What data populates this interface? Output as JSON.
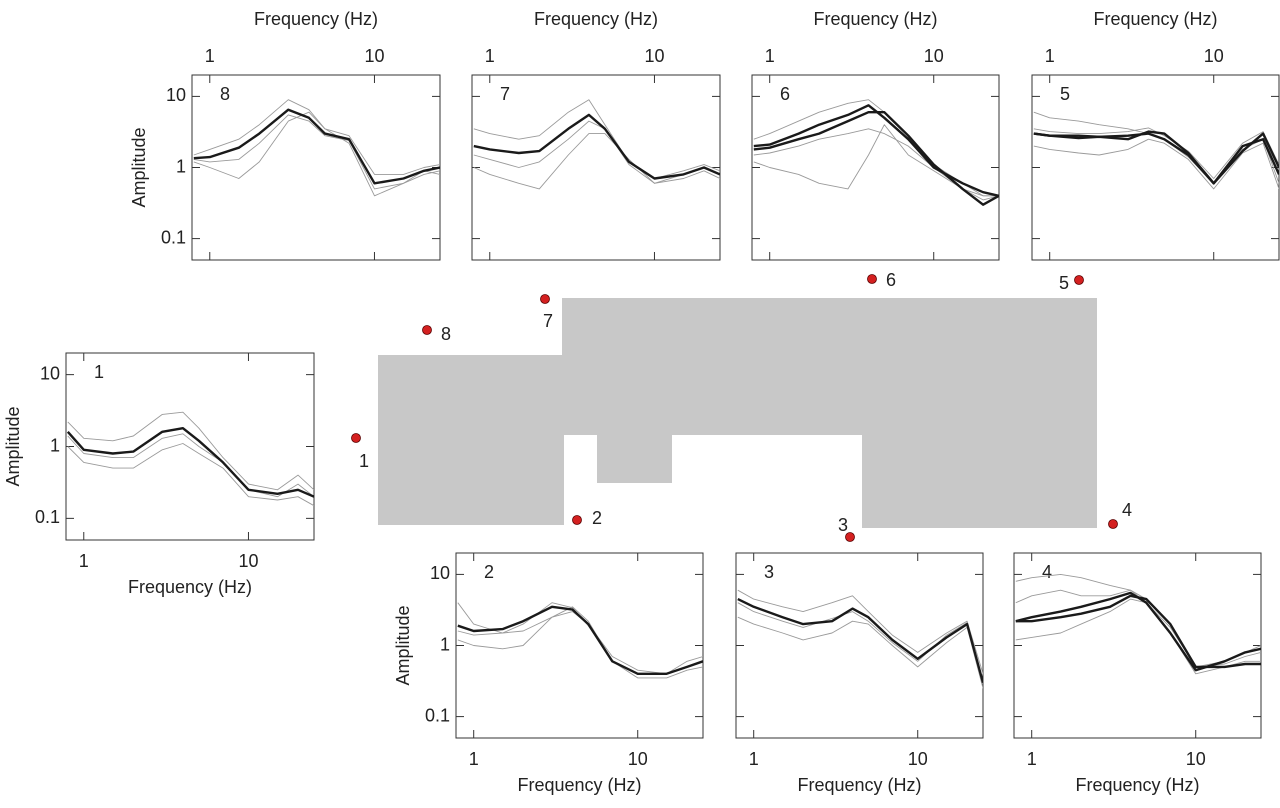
{
  "chart_data": [
    {
      "type": "line",
      "label": "8",
      "xlabel": "Frequency (Hz)",
      "ylabel": "Amplitude",
      "xaxis_position": "top",
      "ytick_labels": true,
      "xscale": "log",
      "yscale": "log",
      "xlim": [
        0.78,
        25
      ],
      "ylim": [
        0.05,
        20
      ],
      "xticks": [
        1,
        10
      ],
      "yticks": [
        0.1,
        1,
        10
      ],
      "x": [
        0.8,
        1,
        1.5,
        2,
        3,
        4,
        5,
        7,
        10,
        15,
        20,
        25
      ],
      "series": [
        {
          "color": "#9a9a9a",
          "values": [
            1.2,
            1.0,
            0.7,
            1.2,
            4.5,
            6,
            3.5,
            2.2,
            0.4,
            0.6,
            0.8,
            0.9
          ]
        },
        {
          "color": "#9a9a9a",
          "values": [
            1.5,
            1.8,
            2.5,
            4,
            9,
            6.5,
            3.5,
            2.8,
            0.8,
            0.8,
            1.0,
            1.1
          ]
        },
        {
          "color": "#9a9a9a",
          "values": [
            1.3,
            1.2,
            1.3,
            2.2,
            5.5,
            4.5,
            2.8,
            2.4,
            0.5,
            0.6,
            0.9,
            0.8
          ]
        },
        {
          "color": "#1a1a1a",
          "values": [
            1.35,
            1.4,
            1.9,
            3,
            6.5,
            5,
            3,
            2.5,
            0.6,
            0.7,
            0.9,
            1.0
          ]
        }
      ]
    },
    {
      "type": "line",
      "label": "7",
      "xlabel": "Frequency (Hz)",
      "xaxis_position": "top",
      "ytick_labels": false,
      "xscale": "log",
      "yscale": "log",
      "xlim": [
        0.78,
        25
      ],
      "ylim": [
        0.05,
        20
      ],
      "xticks": [
        1,
        10
      ],
      "yticks": [
        0.1,
        1,
        10
      ],
      "x": [
        0.8,
        1,
        1.5,
        2,
        3,
        4,
        5,
        7,
        10,
        15,
        20,
        25
      ],
      "series": [
        {
          "color": "#9a9a9a",
          "values": [
            3.5,
            3,
            2.5,
            2.8,
            6,
            9,
            4,
            1.2,
            0.7,
            0.9,
            1.1,
            0.9
          ]
        },
        {
          "color": "#9a9a9a",
          "values": [
            1.0,
            0.8,
            0.6,
            0.5,
            1.5,
            3,
            3,
            1.3,
            0.6,
            0.7,
            0.9,
            0.7
          ]
        },
        {
          "color": "#9a9a9a",
          "values": [
            1.5,
            1.3,
            1.0,
            1.2,
            2.5,
            4.5,
            3.5,
            1.1,
            0.6,
            0.8,
            1.0,
            0.8
          ]
        },
        {
          "color": "#1a1a1a",
          "values": [
            2.0,
            1.8,
            1.6,
            1.7,
            3.5,
            5.5,
            3.5,
            1.2,
            0.7,
            0.8,
            1.0,
            0.8
          ]
        }
      ]
    },
    {
      "type": "line",
      "label": "6",
      "xlabel": "Frequency (Hz)",
      "xaxis_position": "top",
      "ytick_labels": false,
      "xscale": "log",
      "yscale": "log",
      "xlim": [
        0.78,
        25
      ],
      "ylim": [
        0.05,
        20
      ],
      "xticks": [
        1,
        10
      ],
      "yticks": [
        0.1,
        1,
        10
      ],
      "x": [
        0.8,
        1,
        1.5,
        2,
        3,
        4,
        5,
        7,
        10,
        15,
        20,
        25
      ],
      "series": [
        {
          "color": "#9a9a9a",
          "values": [
            1.2,
            1.0,
            0.8,
            0.6,
            0.5,
            1.5,
            4,
            1.5,
            0.9,
            0.5,
            0.4,
            0.4
          ]
        },
        {
          "color": "#9a9a9a",
          "values": [
            2.5,
            3,
            4.5,
            6,
            8,
            9,
            6,
            2.8,
            1.1,
            0.6,
            0.4,
            0.4
          ]
        },
        {
          "color": "#9a9a9a",
          "values": [
            1.5,
            1.6,
            2,
            2.5,
            3,
            3.5,
            3,
            2,
            1.0,
            0.5,
            0.35,
            0.4
          ]
        },
        {
          "color": "#1a1a1a",
          "values": [
            2,
            2.1,
            3,
            4,
            5.5,
            7.5,
            5,
            2.5,
            1.0,
            0.6,
            0.45,
            0.4
          ]
        },
        {
          "color": "#1a1a1a",
          "values": [
            1.8,
            1.9,
            2.5,
            3,
            4.5,
            6,
            6,
            2.8,
            1.1,
            0.5,
            0.3,
            0.4
          ]
        }
      ]
    },
    {
      "type": "line",
      "label": "5",
      "xlabel": "Frequency (Hz)",
      "xaxis_position": "top",
      "ytick_labels": false,
      "xscale": "log",
      "yscale": "log",
      "xlim": [
        0.78,
        25
      ],
      "ylim": [
        0.05,
        20
      ],
      "xticks": [
        1,
        10
      ],
      "yticks": [
        0.1,
        1,
        10
      ],
      "x": [
        0.8,
        1,
        1.5,
        2,
        3,
        4,
        5,
        7,
        10,
        15,
        20,
        25
      ],
      "series": [
        {
          "color": "#9a9a9a",
          "values": [
            6,
            5,
            4.5,
            4,
            3.5,
            3,
            2.5,
            1.4,
            0.6,
            1.8,
            2.5,
            0.6
          ]
        },
        {
          "color": "#9a9a9a",
          "values": [
            2,
            1.8,
            1.6,
            1.5,
            1.8,
            2.5,
            2.2,
            1.3,
            0.5,
            1.6,
            2.2,
            0.5
          ]
        },
        {
          "color": "#9a9a9a",
          "values": [
            3.5,
            3.2,
            3,
            3,
            3.2,
            3.6,
            2.8,
            1.7,
            0.7,
            2.2,
            3.2,
            1.1
          ]
        },
        {
          "color": "#1a1a1a",
          "values": [
            3,
            2.8,
            2.8,
            2.7,
            2.8,
            3,
            2.5,
            1.5,
            0.6,
            2,
            2.5,
            0.8
          ]
        },
        {
          "color": "#1a1a1a",
          "values": [
            3,
            2.8,
            2.6,
            2.7,
            2.5,
            3.2,
            3,
            1.6,
            0.6,
            1.7,
            3,
            1.0
          ]
        }
      ]
    },
    {
      "type": "line",
      "label": "1",
      "xlabel": "Frequency (Hz)",
      "ylabel": "Amplitude",
      "xaxis_position": "bottom",
      "ytick_labels": true,
      "xscale": "log",
      "yscale": "log",
      "xlim": [
        0.78,
        25
      ],
      "ylim": [
        0.05,
        20
      ],
      "xticks": [
        1,
        10
      ],
      "yticks": [
        0.1,
        1,
        10
      ],
      "x": [
        0.8,
        1,
        1.5,
        2,
        3,
        4,
        5,
        7,
        10,
        15,
        20,
        25
      ],
      "series": [
        {
          "color": "#9a9a9a",
          "values": [
            2.2,
            1.3,
            1.2,
            1.4,
            2.8,
            3,
            1.8,
            0.7,
            0.3,
            0.25,
            0.4,
            0.25
          ]
        },
        {
          "color": "#9a9a9a",
          "values": [
            1.0,
            0.6,
            0.5,
            0.5,
            0.9,
            1.1,
            0.8,
            0.5,
            0.2,
            0.18,
            0.2,
            0.15
          ]
        },
        {
          "color": "#9a9a9a",
          "values": [
            1.4,
            0.8,
            0.7,
            0.7,
            1.3,
            1.5,
            1.0,
            0.6,
            0.25,
            0.2,
            0.3,
            0.2
          ]
        },
        {
          "color": "#1a1a1a",
          "values": [
            1.6,
            0.9,
            0.8,
            0.85,
            1.6,
            1.8,
            1.2,
            0.6,
            0.25,
            0.22,
            0.25,
            0.2
          ]
        }
      ]
    },
    {
      "type": "line",
      "label": "2",
      "xlabel": "Frequency (Hz)",
      "ylabel": "Amplitude",
      "xaxis_position": "bottom",
      "ytick_labels": true,
      "xscale": "log",
      "yscale": "log",
      "xlim": [
        0.78,
        25
      ],
      "ylim": [
        0.05,
        20
      ],
      "xticks": [
        1,
        10
      ],
      "yticks": [
        0.1,
        1,
        10
      ],
      "x": [
        0.8,
        1,
        1.5,
        2,
        3,
        4,
        5,
        7,
        10,
        15,
        20,
        25
      ],
      "series": [
        {
          "color": "#9a9a9a",
          "values": [
            4,
            2,
            1.5,
            1.6,
            2.5,
            3,
            2,
            0.7,
            0.45,
            0.4,
            0.5,
            0.6
          ]
        },
        {
          "color": "#9a9a9a",
          "values": [
            1.2,
            1.0,
            0.9,
            1.0,
            2.5,
            3.5,
            2.2,
            0.6,
            0.35,
            0.35,
            0.45,
            0.5
          ]
        },
        {
          "color": "#9a9a9a",
          "values": [
            1.6,
            1.4,
            1.5,
            2.0,
            4,
            3.4,
            1.9,
            0.6,
            0.4,
            0.4,
            0.6,
            0.7
          ]
        },
        {
          "color": "#1a1a1a",
          "values": [
            1.9,
            1.6,
            1.7,
            2.2,
            3.5,
            3.2,
            2,
            0.6,
            0.4,
            0.4,
            0.5,
            0.6
          ]
        }
      ]
    },
    {
      "type": "line",
      "label": "3",
      "xaxis_position": "bottom",
      "xlabel": "Frequency (Hz)",
      "ytick_labels": false,
      "xscale": "log",
      "yscale": "log",
      "xlim": [
        0.78,
        25
      ],
      "ylim": [
        0.05,
        20
      ],
      "xticks": [
        1,
        10
      ],
      "yticks": [
        0.1,
        1,
        10
      ],
      "x": [
        0.8,
        1,
        1.5,
        2,
        3,
        4,
        5,
        7,
        10,
        15,
        20,
        25
      ],
      "series": [
        {
          "color": "#9a9a9a",
          "values": [
            6,
            4.5,
            3.5,
            3,
            4,
            5,
            3,
            1.4,
            0.8,
            1.5,
            2.2,
            0.4
          ]
        },
        {
          "color": "#9a9a9a",
          "values": [
            2.5,
            2,
            1.5,
            1.2,
            1.5,
            2.2,
            2,
            1.0,
            0.5,
            1.1,
            1.8,
            0.25
          ]
        },
        {
          "color": "#9a9a9a",
          "values": [
            4,
            3,
            2.2,
            1.8,
            2.4,
            3,
            2.2,
            1.1,
            0.6,
            1.4,
            2.1,
            0.3
          ]
        },
        {
          "color": "#1a1a1a",
          "values": [
            4.5,
            3.5,
            2.5,
            2.0,
            2.2,
            3.3,
            2.5,
            1.2,
            0.65,
            1.3,
            2,
            0.3
          ]
        }
      ]
    },
    {
      "type": "line",
      "label": "4",
      "xaxis_position": "bottom",
      "xlabel": "Frequency (Hz)",
      "ytick_labels": false,
      "xscale": "log",
      "yscale": "log",
      "xlim": [
        0.78,
        25
      ],
      "ylim": [
        0.05,
        20
      ],
      "xticks": [
        1,
        10
      ],
      "yticks": [
        0.1,
        1,
        10
      ],
      "x": [
        0.8,
        1,
        1.5,
        2,
        3,
        4,
        5,
        7,
        10,
        15,
        20,
        25
      ],
      "series": [
        {
          "color": "#9a9a9a",
          "values": [
            8,
            9,
            10,
            9,
            7,
            6,
            4,
            1.8,
            0.5,
            0.6,
            0.8,
            1.0
          ]
        },
        {
          "color": "#9a9a9a",
          "values": [
            1.2,
            1.3,
            1.5,
            2,
            3,
            4.5,
            4,
            1.5,
            0.4,
            0.5,
            0.6,
            0.6
          ]
        },
        {
          "color": "#9a9a9a",
          "values": [
            4,
            5,
            6,
            5,
            5,
            6,
            4.5,
            2,
            0.5,
            0.55,
            0.7,
            0.8
          ]
        },
        {
          "color": "#1a1a1a",
          "values": [
            2.2,
            2.5,
            3,
            3.5,
            4.5,
            5.5,
            4,
            1.5,
            0.45,
            0.6,
            0.8,
            0.9
          ]
        },
        {
          "color": "#1a1a1a",
          "values": [
            2.2,
            2.2,
            2.5,
            2.8,
            3.5,
            5,
            4.5,
            2,
            0.5,
            0.5,
            0.55,
            0.55
          ]
        }
      ]
    }
  ],
  "map": {
    "stations": [
      "1",
      "2",
      "3",
      "4",
      "5",
      "6",
      "7",
      "8"
    ]
  }
}
